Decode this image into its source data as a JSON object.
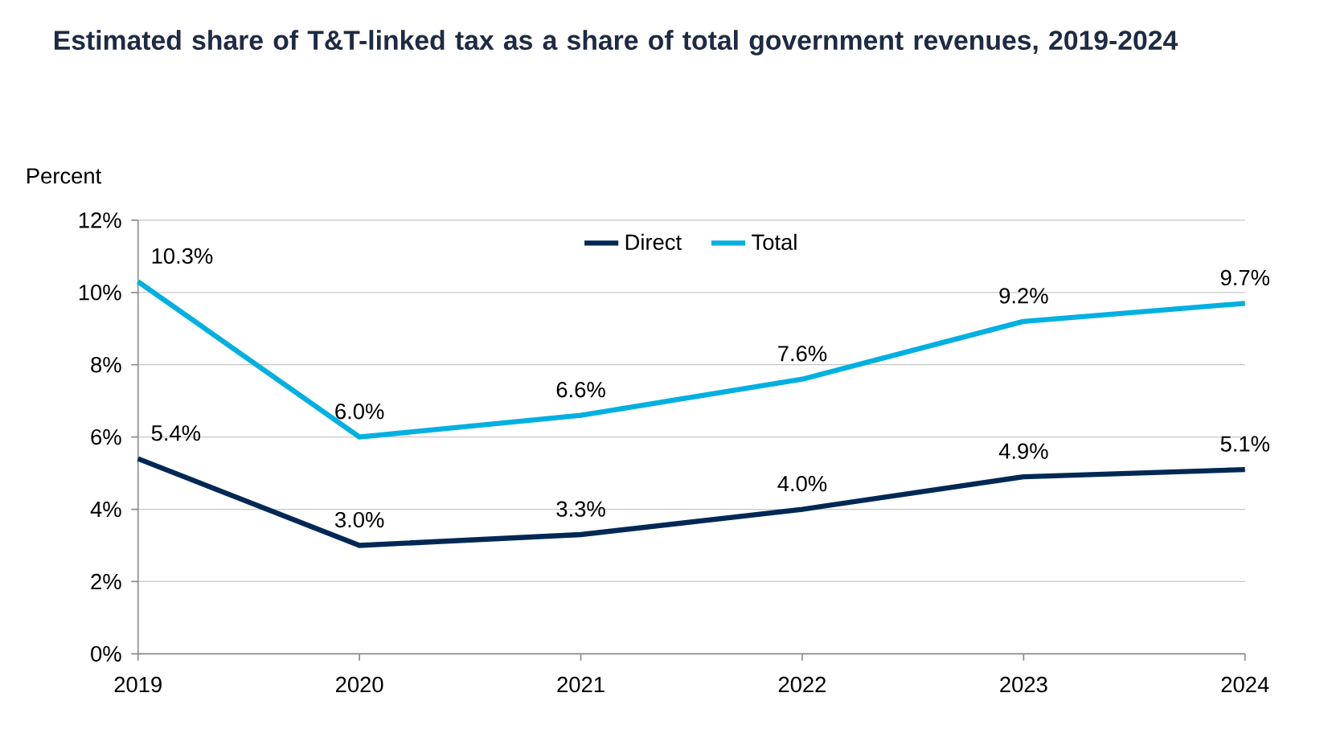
{
  "chart_data": {
    "type": "line",
    "title": "Estimated share of T&T-linked tax as a share of total government revenues, 2019-2024",
    "ylabel": "Percent",
    "x": [
      2019,
      2020,
      2021,
      2022,
      2023,
      2024
    ],
    "series": [
      {
        "name": "Direct",
        "color": "#002855",
        "values": [
          5.4,
          3.0,
          3.3,
          4.0,
          4.9,
          5.1
        ],
        "value_labels": [
          "5.4%",
          "3.0%",
          "3.3%",
          "4.0%",
          "4.9%",
          "5.1%"
        ]
      },
      {
        "name": "Total",
        "color": "#00b0e0",
        "values": [
          10.3,
          6.0,
          6.6,
          7.6,
          9.2,
          9.7
        ],
        "value_labels": [
          "10.3%",
          "6.0%",
          "6.6%",
          "7.6%",
          "9.2%",
          "9.7%"
        ]
      }
    ],
    "xlim": [
      2019,
      2024
    ],
    "xticks": [
      2019,
      2020,
      2021,
      2022,
      2023,
      2024
    ],
    "ylim": [
      0,
      12
    ],
    "yticks": [
      {
        "value": 0,
        "label": "0%"
      },
      {
        "value": 2,
        "label": "2%"
      },
      {
        "value": 4,
        "label": "4%"
      },
      {
        "value": 6,
        "label": "6%"
      },
      {
        "value": 8,
        "label": "8%"
      },
      {
        "value": 10,
        "label": "10%"
      },
      {
        "value": 12,
        "label": "12%"
      }
    ],
    "grid": "y",
    "legend": "top",
    "marker": "none",
    "line_style": "solid"
  }
}
